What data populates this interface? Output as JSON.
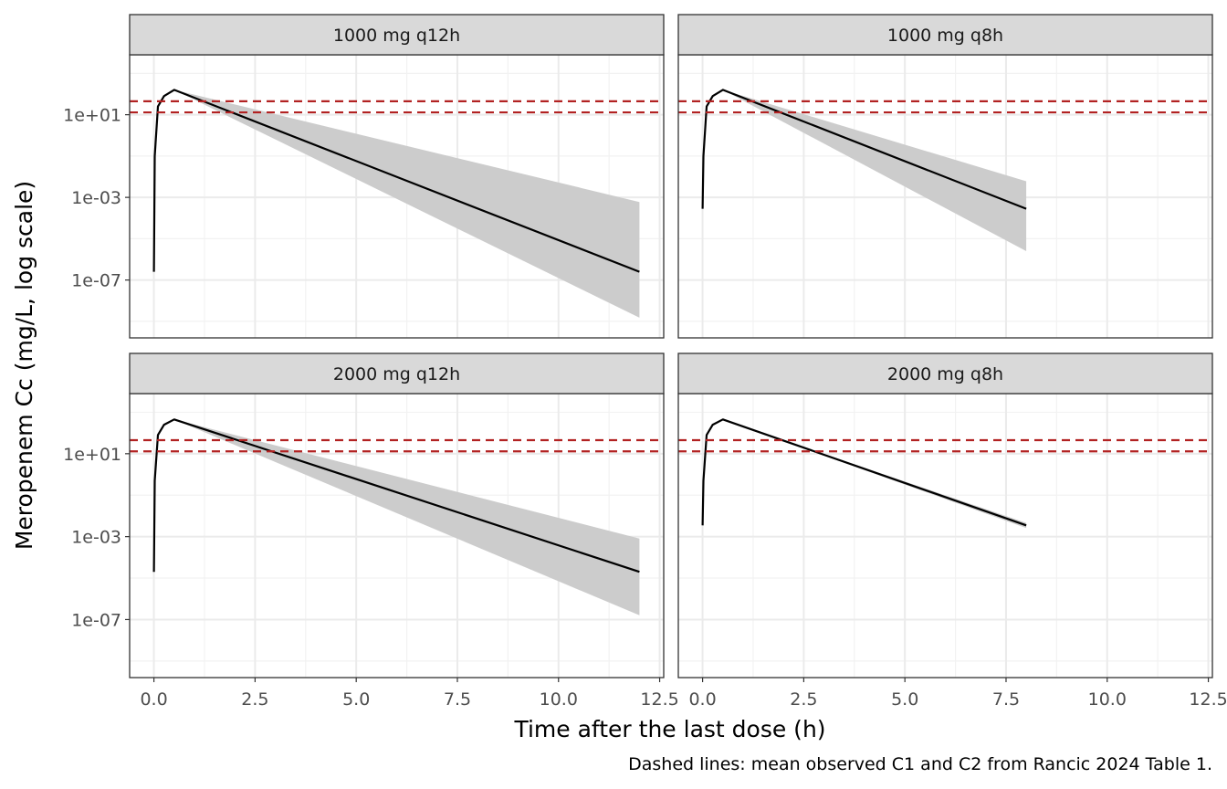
{
  "chart_data": {
    "type": "line",
    "title": "",
    "xlabel": "Time after the last dose (h)",
    "ylabel": "Meropenem Cc (mg/L, log scale)",
    "caption": "Dashed lines: mean observed C1 and C2 from Rancic 2024 Table 1.",
    "y_scale": "log10",
    "xlim": [
      -0.6,
      12.6
    ],
    "ylim_log10": [
      -9.8,
      3.9
    ],
    "x_ticks": [
      0,
      2.5,
      5,
      7.5,
      10,
      12.5
    ],
    "x_tick_labels": [
      "0.0",
      "2.5",
      "5.0",
      "7.5",
      "10.0",
      "12.5"
    ],
    "y_ticks_log10": [
      -7,
      -3,
      1
    ],
    "y_tick_labels": [
      "1e-07",
      "1e-03",
      "1e+01"
    ],
    "grid": true,
    "reference_lines": {
      "style": "dashed",
      "color": "#b22222",
      "y": [
        13,
        45
      ]
    },
    "line_color": "#000000",
    "band_color": "#cccccc",
    "panels": [
      {
        "strip": "1000 mg q12h",
        "series": [
          {
            "x": [
              0,
              0.02,
              0.1,
              0.25,
              0.5,
              12
            ],
            "y": [
              2.5e-07,
              0.1,
              25,
              80,
              160,
              2.5e-07
            ],
            "lower": [
              2.5e-07,
              0.1,
              25,
              80,
              160,
              1.5e-09
            ],
            "upper": [
              2.5e-07,
              0.1,
              25,
              80,
              160,
              0.0006
            ]
          }
        ]
      },
      {
        "strip": "1000 mg q8h",
        "series": [
          {
            "x": [
              0,
              0.02,
              0.1,
              0.25,
              0.5,
              8
            ],
            "y": [
              0.00028,
              0.1,
              25,
              80,
              160,
              0.00028
            ],
            "lower": [
              0.00028,
              0.1,
              25,
              80,
              160,
              2.5e-06
            ],
            "upper": [
              0.00028,
              0.1,
              25,
              80,
              160,
              0.006
            ]
          }
        ]
      },
      {
        "strip": "2000 mg q12h",
        "series": [
          {
            "x": [
              0,
              0.02,
              0.1,
              0.25,
              0.5,
              12
            ],
            "y": [
              2e-05,
              0.5,
              80,
              250,
              450,
              2e-05
            ],
            "lower": [
              2e-05,
              0.5,
              80,
              250,
              450,
              1.6e-07
            ],
            "upper": [
              2e-05,
              0.5,
              80,
              250,
              450,
              0.0008
            ]
          }
        ]
      },
      {
        "strip": "2000 mg q8h",
        "series": [
          {
            "x": [
              0,
              0.02,
              0.1,
              0.25,
              0.5,
              8
            ],
            "y": [
              0.0035,
              0.5,
              80,
              250,
              450,
              0.0035
            ],
            "lower": [
              0.0035,
              0.5,
              80,
              250,
              450,
              0.0026
            ],
            "upper": [
              0.0035,
              0.5,
              80,
              250,
              450,
              0.0046
            ]
          }
        ]
      }
    ]
  }
}
